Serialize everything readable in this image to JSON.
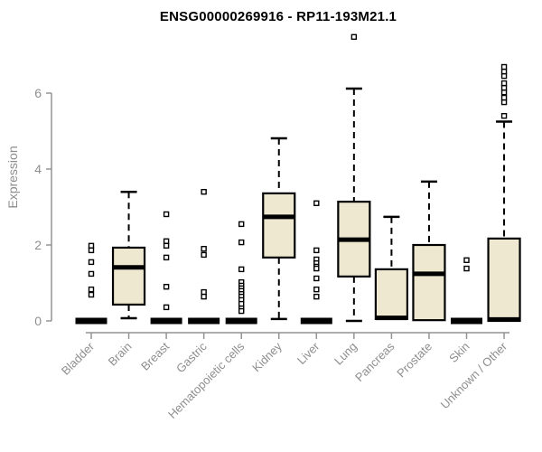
{
  "colors": {
    "background": "#FFFFFF",
    "title_text": "#000000",
    "axis_line": "#949494",
    "axis_text": "#8E8E8E",
    "box_fill": "#EDE8CF",
    "box_stroke": "#000000",
    "outlier_fill": "#FFFFFF"
  },
  "chart_data": {
    "type": "boxplot",
    "title": "ENSG00000269916 - RP11-193M21.1",
    "xlabel": "",
    "ylabel": "Expression",
    "yticks": [
      0,
      2,
      4,
      6
    ],
    "ylim": [
      0,
      7.6
    ],
    "grid": false,
    "legend": false,
    "categories": [
      "Bladder",
      "Brain",
      "Breast",
      "Gastric",
      "Hematopoietic cells",
      "Kidney",
      "Liver",
      "Lung",
      "Pancreas",
      "Prostate",
      "Skin",
      "Unknown / Other"
    ],
    "series": [
      {
        "category": "Bladder",
        "collapsed": true,
        "q1": 0,
        "median": 0,
        "q3": 0,
        "whisker_low": 0,
        "whisker_high": 0,
        "outliers": [
          1.98,
          1.86,
          1.55,
          1.24,
          0.83,
          0.69
        ]
      },
      {
        "category": "Brain",
        "collapsed": false,
        "q1": 0.43,
        "median": 1.41,
        "q3": 1.93,
        "whisker_low": 0.07,
        "whisker_high": 3.4,
        "outliers": []
      },
      {
        "category": "Breast",
        "collapsed": true,
        "q1": 0,
        "median": 0,
        "q3": 0,
        "whisker_low": 0,
        "whisker_high": 0,
        "outliers": [
          2.81,
          2.1,
          1.98,
          1.67,
          0.9,
          0.36
        ]
      },
      {
        "category": "Gastric",
        "collapsed": true,
        "q1": 0,
        "median": 0,
        "q3": 0,
        "whisker_low": 0,
        "whisker_high": 0,
        "outliers": [
          3.4,
          1.9,
          1.74,
          0.76,
          0.64
        ]
      },
      {
        "category": "Hematopoietic cells",
        "collapsed": true,
        "q1": 0,
        "median": 0,
        "q3": 0,
        "whisker_low": 0,
        "whisker_high": 0,
        "outliers": [
          2.55,
          2.07,
          1.36,
          1.02,
          0.93,
          0.86,
          0.79,
          0.71,
          0.64,
          0.55,
          0.45,
          0.33,
          0.26
        ]
      },
      {
        "category": "Kidney",
        "collapsed": false,
        "q1": 1.67,
        "median": 2.74,
        "q3": 3.36,
        "whisker_low": 0.05,
        "whisker_high": 4.81,
        "outliers": []
      },
      {
        "category": "Liver",
        "collapsed": true,
        "q1": 0,
        "median": 0,
        "q3": 0,
        "whisker_low": 0,
        "whisker_high": 0,
        "outliers": [
          3.1,
          1.86,
          1.62,
          1.52,
          1.43,
          1.38,
          1.12,
          0.83,
          0.64
        ]
      },
      {
        "category": "Lung",
        "collapsed": false,
        "q1": 1.17,
        "median": 2.14,
        "q3": 3.14,
        "whisker_low": 0,
        "whisker_high": 6.12,
        "outliers": [
          7.48
        ]
      },
      {
        "category": "Pancreas",
        "collapsed": false,
        "q1": 0.05,
        "median": 0.08,
        "q3": 1.36,
        "whisker_low": 0.05,
        "whisker_high": 2.74,
        "outliers": []
      },
      {
        "category": "Prostate",
        "collapsed": false,
        "q1": 0.02,
        "median": 1.24,
        "q3": 2.0,
        "whisker_low": 0.02,
        "whisker_high": 3.67,
        "outliers": []
      },
      {
        "category": "Skin",
        "collapsed": true,
        "q1": 0,
        "median": 0,
        "q3": 0,
        "whisker_low": 0,
        "whisker_high": 0,
        "outliers": [
          1.6,
          1.38
        ]
      },
      {
        "category": "Unknown / Other",
        "collapsed": false,
        "q1": 0,
        "median": 0.04,
        "q3": 2.17,
        "whisker_low": 0,
        "whisker_high": 5.25,
        "outliers": [
          5.4,
          5.76,
          5.88,
          6.02,
          6.14,
          6.26,
          6.45,
          6.57,
          6.69
        ]
      }
    ]
  }
}
